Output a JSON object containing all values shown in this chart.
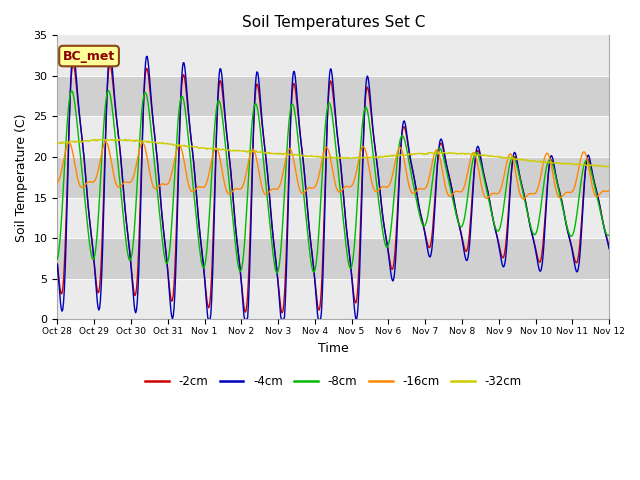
{
  "title": "Soil Temperatures Set C",
  "xlabel": "Time",
  "ylabel": "Soil Temperature (C)",
  "ylim": [
    0,
    35
  ],
  "plot_bg": "#dcdcdc",
  "band_color": "#c8c8c8",
  "legend_labels": [
    "-2cm",
    "-4cm",
    "-8cm",
    "-16cm",
    "-32cm"
  ],
  "legend_colors": [
    "#cc0000",
    "#0000bb",
    "#00bb00",
    "#ff8800",
    "#cccc00"
  ],
  "annotation_text": "BC_met",
  "annotation_facecolor": "#ffff99",
  "annotation_edgecolor": "#8b4513",
  "x_tick_labels": [
    "Oct 28",
    "Oct 29",
    "Oct 30",
    "Oct 31",
    "Nov 1",
    "Nov 2",
    "Nov 3",
    "Nov 4",
    "Nov 5",
    "Nov 6",
    "Nov 7",
    "Nov 8",
    "Nov 9",
    "Nov 10",
    "Nov 11",
    "Nov 12"
  ],
  "n_days": 15,
  "n_points": 720
}
